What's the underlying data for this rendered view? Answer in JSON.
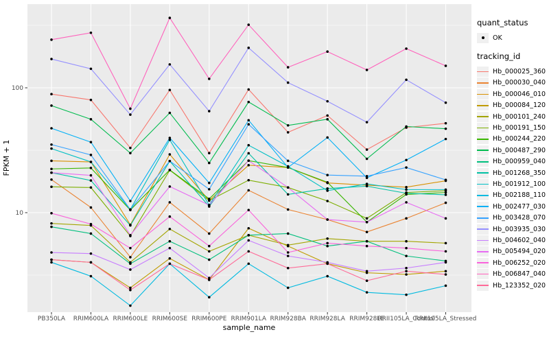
{
  "figure": {
    "background": "#FFFFFF",
    "panel_background": "#EBEBEB",
    "gridline_color": "#FFFFFF",
    "tick_label_color": "#4D4D4D",
    "title_color": "#000000",
    "point_color": "#000000"
  },
  "axes": {
    "x_title": "sample_name",
    "y_title": "FPKM + 1",
    "y_tick_labels": [
      "100",
      "10"
    ]
  },
  "legend": {
    "quant_status_title": "quant_status",
    "quant_status_items": [
      "OK"
    ],
    "tracking_id_title": "tracking_id"
  },
  "chart_data": {
    "type": "line",
    "title": "",
    "xlabel": "sample_name",
    "ylabel": "FPKM + 1",
    "y_scale": "log10",
    "grid": true,
    "legend_position": "right",
    "marker": "black-point",
    "y_major_ticks": [
      100,
      10
    ],
    "y_minor_gridlines": [
      3.162,
      31.623,
      316.228
    ],
    "ylim": [
      1.6,
      470
    ],
    "categories": [
      "PB350LA",
      "RRIM600LA",
      "RRIM600LE",
      "RRIM600SE",
      "RRIM600PE",
      "RRIM901LA",
      "RRIM928BA",
      "RRIM928LA",
      "RRIM928LE",
      "RRII105LA_Control",
      "RRII105LA_Stressed"
    ],
    "series": [
      {
        "tracking_id": "Hb_000025_360",
        "color": "#F8766D",
        "values": [
          89,
          80,
          33,
          96,
          30,
          97,
          44,
          60,
          32,
          48,
          52
        ]
      },
      {
        "tracking_id": "Hb_000030_040",
        "color": "#EA8331",
        "values": [
          18.4,
          11,
          4.4,
          12.1,
          6.8,
          15.1,
          10.6,
          8.8,
          7,
          9,
          12
        ]
      },
      {
        "tracking_id": "Hb_000046_010",
        "color": "#D89000",
        "values": [
          26,
          25.5,
          8,
          29.3,
          12.5,
          24,
          23,
          17.3,
          16.6,
          16,
          18
        ]
      },
      {
        "tracking_id": "Hb_000084_120",
        "color": "#C09B00",
        "values": [
          4.2,
          4,
          2.5,
          4.3,
          2.9,
          7.5,
          5.4,
          3.9,
          3.3,
          3.2,
          3.4
        ]
      },
      {
        "tracking_id": "Hb_000101_240",
        "color": "#A3A500",
        "values": [
          8.2,
          7.9,
          4,
          7.4,
          4.9,
          6.6,
          5.5,
          6.2,
          5.9,
          5.9,
          5.7
        ]
      },
      {
        "tracking_id": "Hb_000191_150",
        "color": "#7CAE00",
        "values": [
          16.1,
          15.9,
          6.5,
          21.9,
          12.5,
          18.2,
          15.9,
          12.4,
          9,
          14.5,
          15
        ]
      },
      {
        "tracking_id": "Hb_000244_220",
        "color": "#39B600",
        "values": [
          22.4,
          22.8,
          10.5,
          22,
          12.9,
          26.1,
          23,
          17.5,
          8.4,
          14,
          14.5
        ]
      },
      {
        "tracking_id": "Hb_000487_290",
        "color": "#00BB4E",
        "values": [
          72,
          56,
          30,
          63,
          25,
          77,
          50,
          56,
          27,
          49,
          47
        ]
      },
      {
        "tracking_id": "Hb_000959_040",
        "color": "#00BF7D",
        "values": [
          7.7,
          6.8,
          3.9,
          5.9,
          4.2,
          6.6,
          6.8,
          5.4,
          5.9,
          4.5,
          4.1
        ]
      },
      {
        "tracking_id": "Hb_001268_350",
        "color": "#00C1A3",
        "values": [
          20.9,
          18.1,
          7.9,
          25.9,
          11.2,
          29.9,
          14,
          15.6,
          16.3,
          14.3,
          13.9
        ]
      },
      {
        "tracking_id": "Hb_001912_100",
        "color": "#00BFC4",
        "values": [
          32.6,
          25.5,
          10.6,
          38.3,
          11.5,
          34.7,
          23.5,
          15,
          17,
          15.3,
          15.3
        ]
      },
      {
        "tracking_id": "Hb_002188_110",
        "color": "#00BAE0",
        "values": [
          4,
          3.1,
          1.8,
          3.9,
          2.1,
          3.9,
          2.5,
          3.1,
          2.3,
          2.2,
          2.6
        ]
      },
      {
        "tracking_id": "Hb_002477_030",
        "color": "#00B0F6",
        "values": [
          47.4,
          36.7,
          12.4,
          39.7,
          17.3,
          55,
          23,
          40,
          19,
          26.4,
          38.9
        ]
      },
      {
        "tracking_id": "Hb_003428_070",
        "color": "#35A2FF",
        "values": [
          35.1,
          29,
          10.6,
          25.9,
          15.4,
          51,
          26,
          20,
          19.6,
          23,
          18.3
        ]
      },
      {
        "tracking_id": "Hb_003935_030",
        "color": "#9590FF",
        "values": [
          170,
          142,
          61,
          154,
          65,
          209,
          110,
          78,
          53,
          116,
          76
        ]
      },
      {
        "tracking_id": "Hb_004602_040",
        "color": "#C77CFF",
        "values": [
          4.8,
          4.7,
          3.5,
          5.2,
          3,
          6,
          4.5,
          4,
          3.4,
          3.6,
          4
        ]
      },
      {
        "tracking_id": "Hb_005494_020",
        "color": "#E76BF3",
        "values": [
          20.9,
          19.9,
          6.6,
          16.2,
          11.5,
          26.1,
          15.9,
          8.8,
          8.4,
          12.1,
          9
        ]
      },
      {
        "tracking_id": "Hb_006252_020",
        "color": "#FA62DB",
        "values": [
          9.9,
          8.1,
          5.2,
          9.3,
          5.4,
          10.5,
          4.8,
          5.7,
          5.4,
          5.2,
          4.9
        ]
      },
      {
        "tracking_id": "Hb_006847_040",
        "color": "#FF62BC",
        "values": [
          243,
          276,
          68,
          363,
          118,
          320,
          146,
          195,
          139,
          206,
          150
        ]
      },
      {
        "tracking_id": "Hb_123352_020",
        "color": "#FF6A98",
        "values": [
          4.2,
          4,
          2.4,
          3.9,
          2.9,
          4.9,
          3.6,
          3.9,
          2.85,
          3.4,
          3.2
        ]
      }
    ]
  }
}
